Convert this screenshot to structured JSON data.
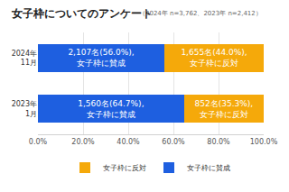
{
  "chart_data": {
    "type": "bar",
    "title": "女子枠についてのアンケート",
    "subtitle": "（2024年 n=3,762、2023年 n=2,412）",
    "orientation": "horizontal",
    "stacked": true,
    "categories": [
      "2024年\n11月",
      "2023年\n1月"
    ],
    "series": [
      {
        "name": "女子枠に賛成",
        "color": "#1e5fe0",
        "values": [
          56.0,
          64.7
        ],
        "value_labels": [
          "2,107名(56.0%),\n女子枠に賛成",
          "1,560名(64.7%),\n女子枠に賛成"
        ]
      },
      {
        "name": "女子枠に反対",
        "color": "#f5a90a",
        "values": [
          44.0,
          35.3
        ],
        "value_labels": [
          "1,655名(44.0%),\n女子枠に反対",
          "852名(35.3%),\n女子枠に反対"
        ]
      }
    ],
    "data_labels": true,
    "xlim": [
      0,
      100
    ],
    "xticks": [
      {
        "value": 0,
        "label": "0.0%"
      },
      {
        "value": 20,
        "label": "20.0%"
      },
      {
        "value": 40,
        "label": "40.0%"
      },
      {
        "value": 60,
        "label": "60.0%"
      },
      {
        "value": 80,
        "label": "80.0%"
      },
      {
        "value": 100,
        "label": "100.0%"
      }
    ],
    "grid": true,
    "legend": "bottom"
  }
}
